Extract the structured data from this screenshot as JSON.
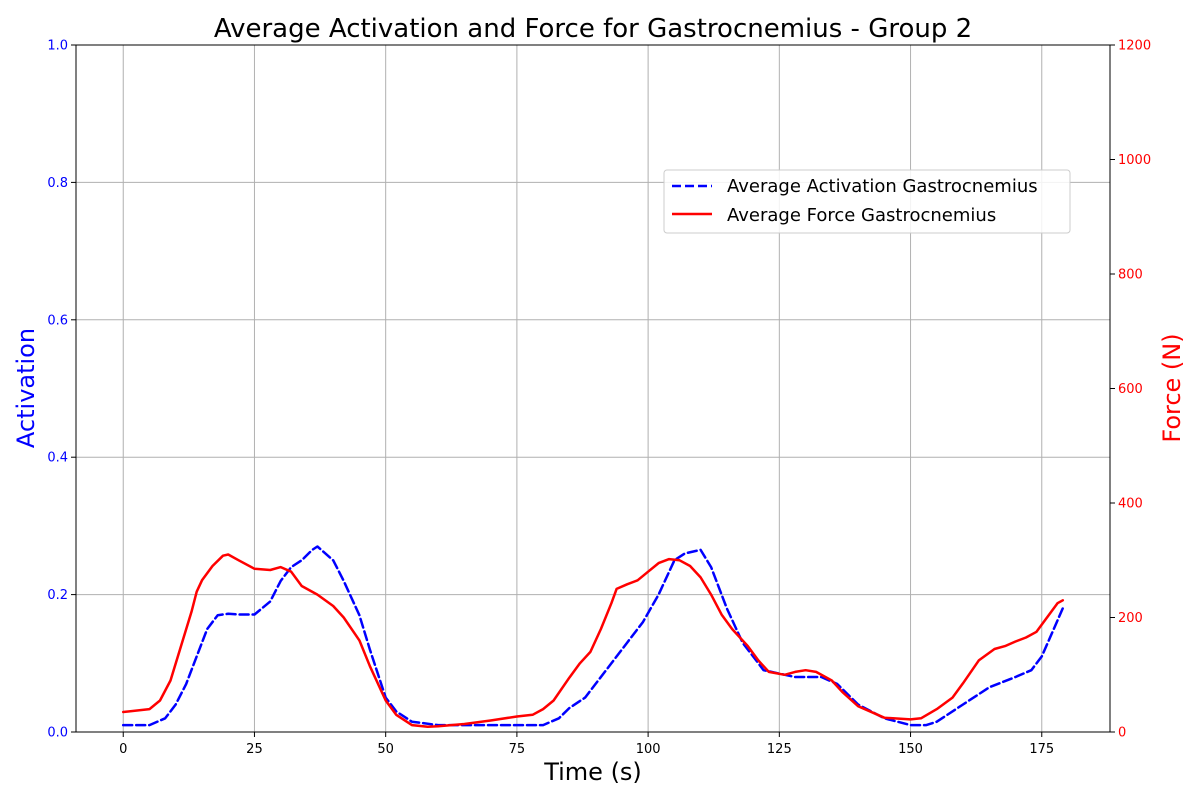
{
  "chart_data": {
    "type": "line",
    "title": "Average Activation and Force for Gastrocnemius - Group 2",
    "xlabel": "Time (s)",
    "ylabel": "Activation",
    "y2label": "Force (N)",
    "xlim": [
      -9,
      188
    ],
    "ylim": [
      0,
      1.0
    ],
    "y2lim": [
      0,
      1200
    ],
    "xticks": [
      0,
      25,
      50,
      75,
      100,
      125,
      150,
      175
    ],
    "yticks": [
      0.0,
      0.2,
      0.4,
      0.6,
      0.8,
      1.0
    ],
    "y2ticks": [
      0,
      200,
      400,
      600,
      800,
      1000,
      1200
    ],
    "grid": true,
    "legend_position": "upper-right",
    "colors": {
      "activation": "#0000ff",
      "force": "#ff0000",
      "grid": "#b0b0b0"
    },
    "series": [
      {
        "name": "Average Activation Gastrocnemius",
        "axis": "left",
        "style": "dashed",
        "color": "#0000ff",
        "x": [
          0,
          5,
          8,
          10,
          12,
          14,
          16,
          18,
          20,
          22,
          25,
          28,
          30,
          32,
          34,
          36,
          37,
          40,
          42,
          45,
          47,
          50,
          52,
          55,
          60,
          65,
          70,
          75,
          78,
          80,
          83,
          85,
          88,
          90,
          93,
          96,
          99,
          102,
          105,
          107,
          110,
          112,
          115,
          118,
          120,
          122,
          125,
          128,
          130,
          133,
          136,
          140,
          145,
          150,
          153,
          155,
          160,
          165,
          170,
          173,
          175,
          179
        ],
        "y": [
          0.01,
          0.01,
          0.02,
          0.04,
          0.07,
          0.11,
          0.15,
          0.17,
          0.172,
          0.171,
          0.171,
          0.19,
          0.22,
          0.24,
          0.25,
          0.265,
          0.27,
          0.25,
          0.22,
          0.17,
          0.12,
          0.05,
          0.03,
          0.015,
          0.01,
          0.01,
          0.01,
          0.01,
          0.01,
          0.01,
          0.02,
          0.035,
          0.05,
          0.07,
          0.1,
          0.13,
          0.16,
          0.2,
          0.25,
          0.26,
          0.265,
          0.24,
          0.18,
          0.13,
          0.11,
          0.09,
          0.085,
          0.08,
          0.08,
          0.08,
          0.07,
          0.04,
          0.02,
          0.01,
          0.01,
          0.015,
          0.04,
          0.065,
          0.08,
          0.09,
          0.11,
          0.18
        ]
      },
      {
        "name": "Average Force Gastrocnemius",
        "axis": "right",
        "style": "solid",
        "color": "#ff0000",
        "x": [
          0,
          5,
          7,
          9,
          11,
          13,
          14,
          15,
          17,
          19,
          20,
          22,
          25,
          28,
          30,
          32,
          34,
          37,
          40,
          42,
          45,
          47,
          50,
          52,
          55,
          58,
          60,
          65,
          70,
          75,
          78,
          80,
          82,
          85,
          87,
          89,
          91,
          93,
          94,
          96,
          98,
          100,
          102,
          104,
          106,
          108,
          110,
          112,
          114,
          116,
          119,
          121,
          123,
          126,
          128,
          130,
          132,
          135,
          137,
          140,
          145,
          150,
          152,
          155,
          158,
          160,
          163,
          166,
          168,
          170,
          172,
          174,
          176,
          178,
          179
        ],
        "y": [
          35,
          40,
          55,
          90,
          150,
          210,
          245,
          265,
          290,
          308,
          310,
          300,
          285,
          283,
          288,
          280,
          255,
          240,
          220,
          200,
          160,
          115,
          55,
          30,
          12,
          9,
          10,
          14,
          20,
          27,
          30,
          40,
          55,
          95,
          120,
          140,
          180,
          225,
          250,
          258,
          265,
          280,
          295,
          302,
          300,
          290,
          270,
          240,
          205,
          180,
          150,
          125,
          105,
          100,
          105,
          108,
          105,
          90,
          70,
          45,
          25,
          22,
          24,
          40,
          60,
          85,
          125,
          145,
          150,
          158,
          165,
          175,
          200,
          225,
          230
        ]
      }
    ]
  }
}
